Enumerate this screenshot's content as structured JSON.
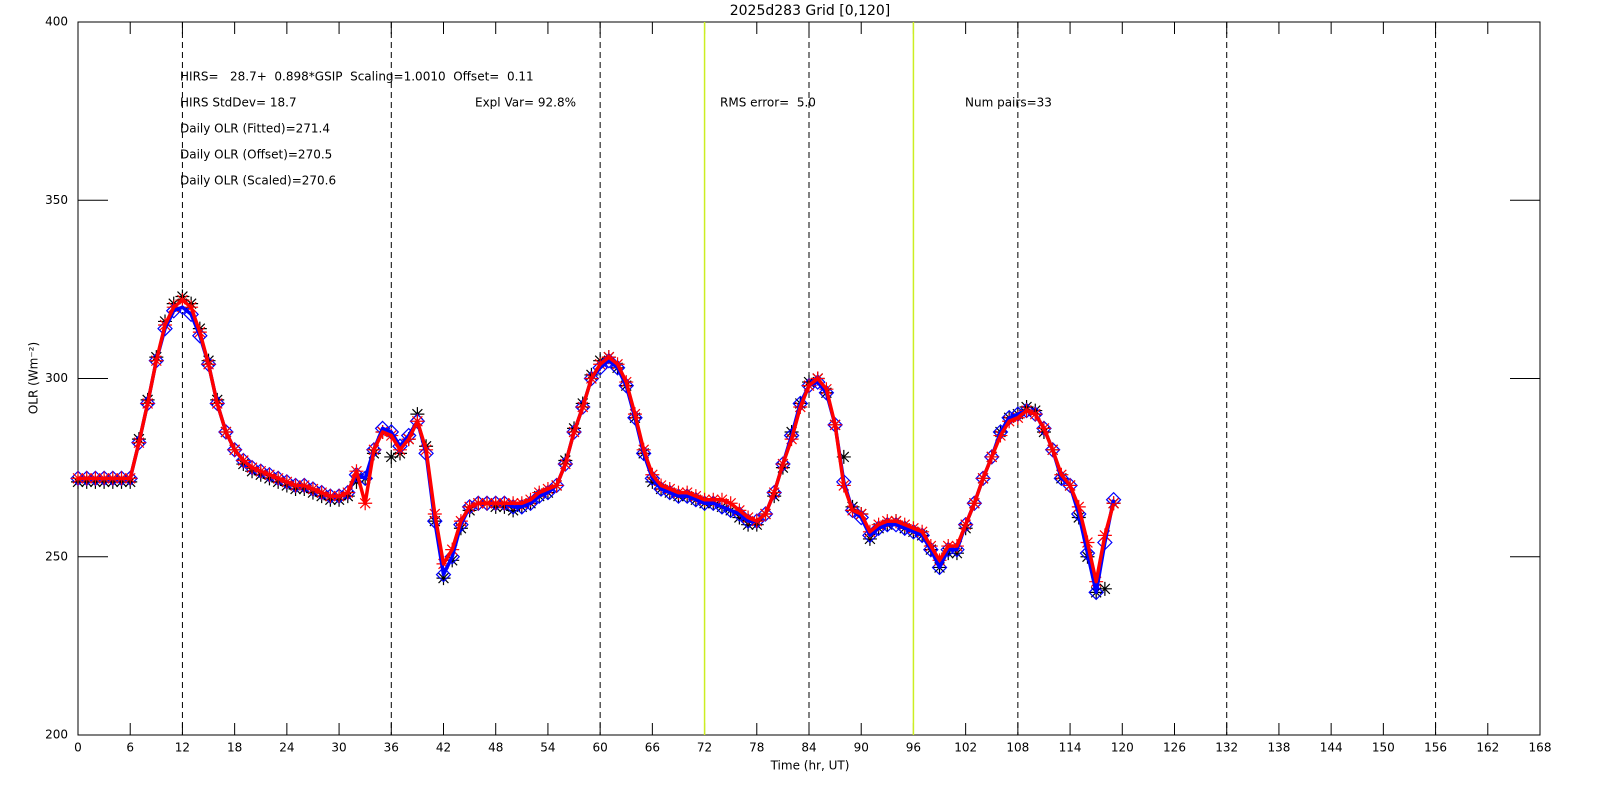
{
  "chart_data": {
    "type": "line",
    "title": "2025d283 Grid [0,120]",
    "x_label": "Time (hr, UT)",
    "y_label": "OLR (Wm⁻²)",
    "xlim": [
      0,
      168
    ],
    "xticks": [
      0,
      6,
      12,
      18,
      24,
      30,
      36,
      42,
      48,
      54,
      60,
      66,
      72,
      78,
      84,
      90,
      96,
      102,
      108,
      114,
      120,
      126,
      132,
      138,
      144,
      150,
      156,
      162,
      168
    ],
    "ylim": [
      200,
      400
    ],
    "yticks": [
      200,
      250,
      300,
      350,
      400
    ],
    "vlines_dashed": [
      12,
      36,
      60,
      84,
      108,
      132,
      156
    ],
    "vlines_solid": [
      72,
      96
    ],
    "vline_dashed_color": "#000000",
    "vline_solid_color": "#ccee22",
    "annotations": [
      "HIRS=   28.7+  0.898*GSIP  Scaling=1.0010  Offset=  0.11",
      "HIRS StdDev= 18.7",
      "Expl Var= 92.8%",
      "RMS error=  5.0",
      "Num pairs=33",
      "Daily OLR (Fitted)=271.4",
      "Daily OLR (Offset)=270.5",
      "Daily OLR (Scaled)=270.6"
    ],
    "x": [
      0,
      1,
      2,
      3,
      4,
      5,
      6,
      7,
      8,
      9,
      10,
      11,
      12,
      13,
      14,
      15,
      16,
      17,
      18,
      19,
      20,
      21,
      22,
      23,
      24,
      25,
      26,
      27,
      28,
      29,
      30,
      31,
      32,
      33,
      34,
      35,
      36,
      37,
      38,
      39,
      40,
      41,
      42,
      43,
      44,
      45,
      46,
      47,
      48,
      49,
      50,
      51,
      52,
      53,
      54,
      55,
      56,
      57,
      58,
      59,
      60,
      61,
      62,
      63,
      64,
      65,
      66,
      67,
      68,
      69,
      70,
      71,
      72,
      73,
      74,
      75,
      76,
      77,
      78,
      79,
      80,
      81,
      82,
      83,
      84,
      85,
      86,
      87,
      88,
      89,
      90,
      91,
      92,
      93,
      94,
      95,
      96,
      97,
      98,
      99,
      100,
      101,
      102,
      103,
      104,
      105,
      106,
      107,
      108,
      109,
      110,
      111,
      112,
      113,
      114,
      115,
      116,
      117,
      118,
      119
    ],
    "series": [
      {
        "color": "#000000",
        "marker": "asterisk",
        "line": false,
        "values": [
          271,
          271,
          271,
          271,
          271,
          271,
          271,
          283,
          294,
          306,
          316,
          321,
          323,
          321,
          314,
          305,
          294,
          285,
          280,
          276,
          274,
          273,
          272,
          271,
          270,
          269,
          269,
          268,
          267,
          266,
          266,
          267,
          271,
          272,
          279,
          285,
          278,
          279,
          283,
          290,
          281,
          260,
          244,
          249,
          258,
          263,
          265,
          265,
          264,
          264,
          263,
          264,
          265,
          267,
          268,
          270,
          277,
          286,
          293,
          301,
          305,
          306,
          303,
          298,
          289,
          279,
          271,
          269,
          268,
          267,
          267,
          266,
          265,
          265,
          264,
          263,
          261,
          259,
          259,
          262,
          267,
          275,
          285,
          293,
          299,
          300,
          296,
          287,
          278,
          264,
          262,
          255,
          258,
          259,
          260,
          258,
          257,
          256,
          252,
          247,
          251,
          251,
          258,
          265,
          272,
          278,
          285,
          289,
          290,
          292,
          291,
          285,
          280,
          272,
          270,
          261,
          250,
          240,
          241,
          265
        ]
      },
      {
        "color": "#0000ff",
        "marker": "diamond",
        "line": true,
        "values": [
          272,
          272,
          272,
          272,
          272,
          272,
          272,
          282,
          293,
          305,
          314,
          319,
          320,
          318,
          312,
          304,
          293,
          285,
          280,
          277,
          275,
          274,
          273,
          272,
          271,
          270,
          270,
          269,
          268,
          267,
          267,
          268,
          273,
          272,
          280,
          286,
          285,
          281,
          284,
          288,
          279,
          260,
          245,
          250,
          259,
          264,
          265,
          265,
          265,
          265,
          264,
          264,
          265,
          267,
          268,
          270,
          276,
          285,
          292,
          300,
          303,
          305,
          303,
          298,
          289,
          279,
          272,
          269,
          268,
          267,
          267,
          266,
          265,
          265,
          264,
          263,
          262,
          260,
          260,
          262,
          268,
          276,
          284,
          293,
          298,
          299,
          296,
          287,
          271,
          263,
          261,
          256,
          258,
          259,
          259,
          258,
          257,
          256,
          252,
          247,
          252,
          252,
          259,
          265,
          272,
          278,
          285,
          289,
          290,
          291,
          290,
          286,
          280,
          272,
          270,
          262,
          251,
          240,
          254,
          266
        ]
      },
      {
        "color": "#ff0000",
        "marker": "asterisk",
        "line": true,
        "values": [
          272,
          272,
          272,
          272,
          272,
          272,
          272,
          282,
          293,
          305,
          315,
          320,
          322,
          320,
          313,
          304,
          293,
          285,
          280,
          277,
          275,
          274,
          273,
          272,
          271,
          270,
          270,
          269,
          268,
          267,
          267,
          268,
          274,
          265,
          280,
          285,
          284,
          280,
          283,
          288,
          280,
          262,
          248,
          252,
          260,
          264,
          265,
          265,
          265,
          265,
          265,
          265,
          266,
          268,
          269,
          270,
          276,
          285,
          292,
          300,
          304,
          306,
          304,
          299,
          290,
          280,
          273,
          270,
          269,
          268,
          268,
          267,
          266,
          266,
          266,
          265,
          263,
          261,
          260,
          262,
          268,
          276,
          283,
          292,
          298,
          300,
          297,
          287,
          270,
          263,
          262,
          257,
          259,
          260,
          260,
          259,
          258,
          257,
          253,
          249,
          253,
          253,
          259,
          265,
          272,
          278,
          284,
          288,
          289,
          291,
          290,
          286,
          280,
          273,
          270,
          264,
          254,
          243,
          256,
          265
        ]
      }
    ]
  }
}
